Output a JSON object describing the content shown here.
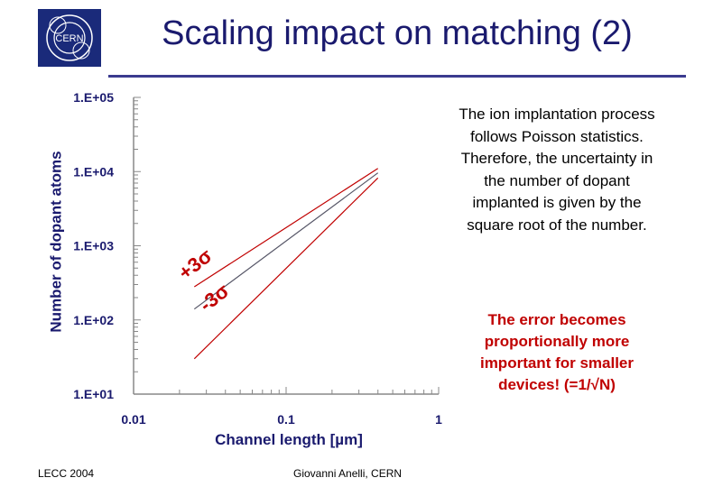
{
  "slide": {
    "title": "Scaling impact on matching (2)",
    "logo_text": "CERN",
    "footer_left": "LECC 2004",
    "footer_center": "Giovanni Anelli, CERN",
    "note_main": "The ion implantation process follows Poisson statistics. Therefore, the uncertainty in the number of dopant implanted is given by the square root of the number.",
    "note_emphasis": "The error becomes proportionally more important for smaller devices! (=1/√N)",
    "colors": {
      "title": "#1a1a6e",
      "accent_line": "#3b3b8f",
      "emphasis": "#c00000",
      "bound_lines": "#c00000",
      "mean_line": "#555566"
    }
  },
  "chart_data": {
    "type": "line",
    "xlabel": "Channel length [µm]",
    "ylabel": "Number of dopant atoms",
    "x_scale": "log",
    "y_scale": "log",
    "xlim": [
      0.01,
      1
    ],
    "ylim": [
      10,
      100000
    ],
    "x_ticks": [
      "0.01",
      "0.1",
      "1"
    ],
    "y_ticks": [
      "1.E+01",
      "1.E+02",
      "1.E+03",
      "1.E+04",
      "1.E+05"
    ],
    "grid": false,
    "series": [
      {
        "x": [
          0.025,
          0.4
        ],
        "y": [
          280,
          11000
        ]
      },
      {
        "x": [
          0.025,
          0.4
        ],
        "y": [
          140,
          9600
        ]
      },
      {
        "x": [
          0.025,
          0.4
        ],
        "y": [
          30,
          8200
        ]
      }
    ],
    "annotations": [
      {
        "text": "+3σ",
        "x": 0.027,
        "y": 480
      },
      {
        "text": "-3σ",
        "x": 0.036,
        "y": 170
      }
    ]
  }
}
